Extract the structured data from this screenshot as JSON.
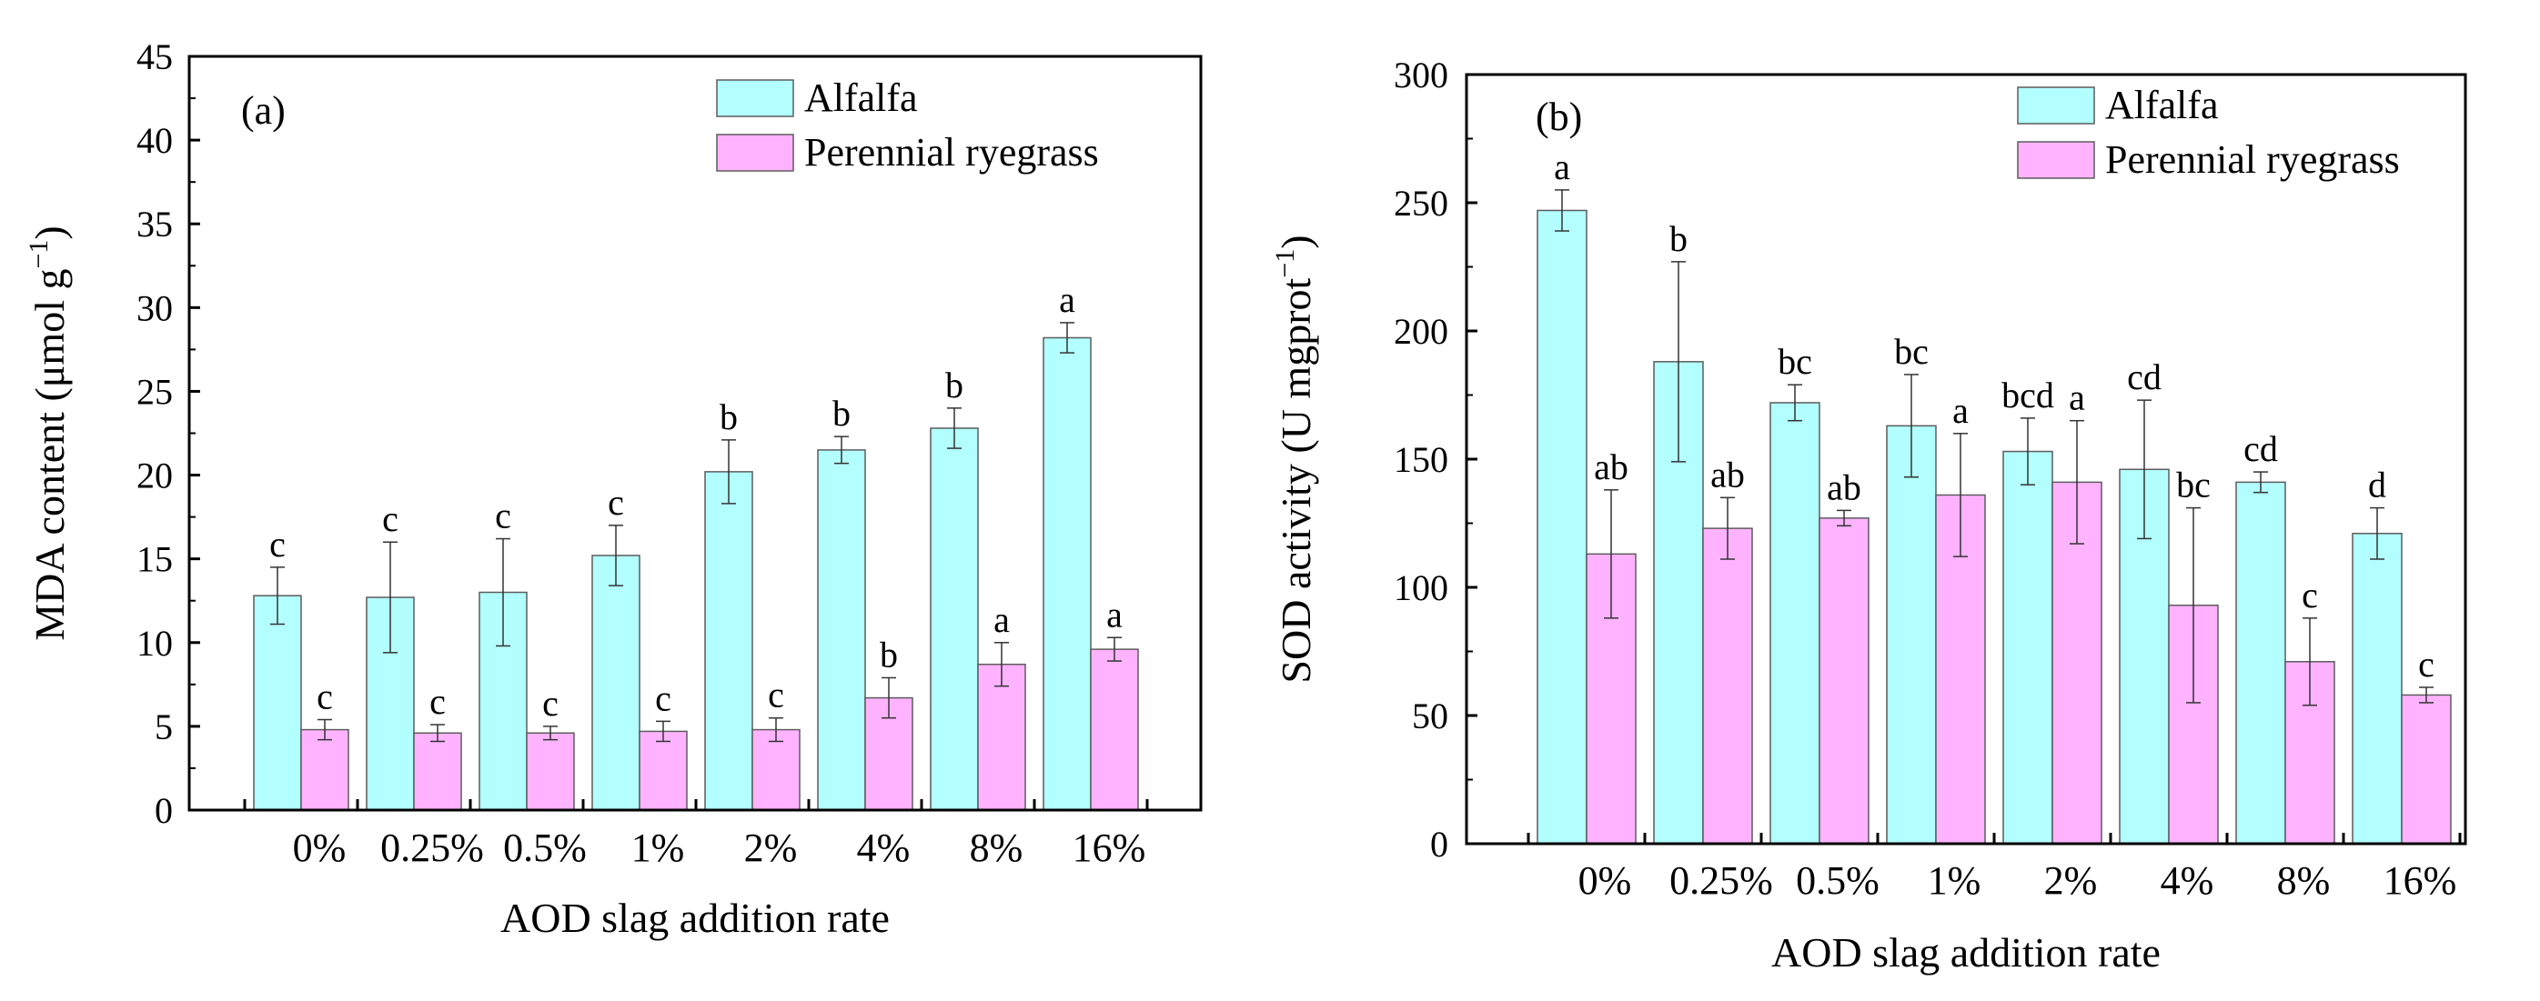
{
  "colors": {
    "alfalfa": "#b3ffff",
    "ryegrass": "#ffb3ff",
    "stroke": "#5c5c5c",
    "axis": "#000000"
  },
  "chart_data": [
    {
      "type": "bar",
      "panel_label": "(a)",
      "xlabel": "AOD slag addition rate",
      "ylabel": "MDA content (μmol g",
      "ylabel_sup": "−1",
      "ylabel_close": ")",
      "ylim": [
        0,
        45
      ],
      "yticks": [
        0,
        5,
        10,
        15,
        20,
        25,
        30,
        35,
        40,
        45
      ],
      "legend_position": "top-right",
      "categories": [
        "0%",
        "0.25%",
        "0.5%",
        "1%",
        "2%",
        "4%",
        "8%",
        "16%"
      ],
      "series": [
        {
          "name": "Alfalfa",
          "color_key": "alfalfa",
          "values": [
            12.8,
            12.7,
            13.0,
            15.2,
            20.2,
            21.5,
            22.8,
            28.2
          ],
          "errors": [
            1.7,
            3.3,
            3.2,
            1.8,
            1.9,
            0.8,
            1.2,
            0.9
          ],
          "letters": [
            "c",
            "c",
            "c",
            "c",
            "b",
            "b",
            "b",
            "a"
          ]
        },
        {
          "name": "Perennial ryegrass",
          "color_key": "ryegrass",
          "values": [
            4.8,
            4.6,
            4.6,
            4.7,
            4.8,
            6.7,
            8.7,
            9.6
          ],
          "errors": [
            0.6,
            0.5,
            0.4,
            0.6,
            0.7,
            1.2,
            1.3,
            0.7
          ],
          "letters": [
            "c",
            "c",
            "c",
            "c",
            "c",
            "b",
            "a",
            "a"
          ]
        }
      ]
    },
    {
      "type": "bar",
      "panel_label": "(b)",
      "xlabel": "AOD slag addition rate",
      "ylabel": "SOD activity (U mgprot",
      "ylabel_sup": "−1",
      "ylabel_close": ")",
      "ylim": [
        0,
        300
      ],
      "yticks": [
        0,
        50,
        100,
        150,
        200,
        250,
        300
      ],
      "legend_position": "top-right",
      "categories": [
        "0%",
        "0.25%",
        "0.5%",
        "1%",
        "2%",
        "4%",
        "8%",
        "16%"
      ],
      "series": [
        {
          "name": "Alfalfa",
          "color_key": "alfalfa",
          "values": [
            247,
            188,
            172,
            163,
            153,
            146,
            141,
            121
          ],
          "errors": [
            8,
            39,
            7,
            20,
            13,
            27,
            4,
            10
          ],
          "letters": [
            "a",
            "b",
            "bc",
            "bc",
            "bcd",
            "cd",
            "cd",
            "d"
          ]
        },
        {
          "name": "Perennial ryegrass",
          "color_key": "ryegrass",
          "values": [
            113,
            123,
            127,
            136,
            141,
            93,
            71,
            58
          ],
          "errors": [
            25,
            12,
            3,
            24,
            24,
            38,
            17,
            3
          ],
          "letters": [
            "ab",
            "ab",
            "ab",
            "a",
            "a",
            "bc",
            "c",
            "c"
          ]
        }
      ]
    }
  ]
}
